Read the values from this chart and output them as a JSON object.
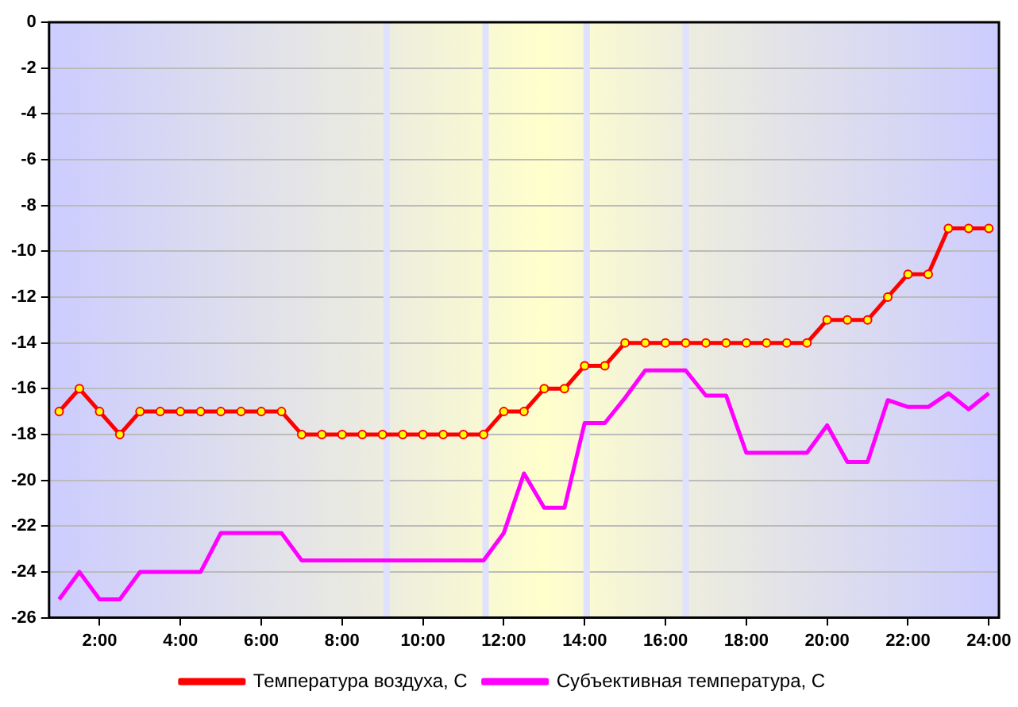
{
  "chart_data": {
    "type": "line",
    "x": [
      1,
      1.5,
      2,
      2.5,
      3,
      3.5,
      4,
      4.5,
      5,
      5.5,
      6,
      6.5,
      7,
      7.5,
      8,
      8.5,
      9,
      9.5,
      10,
      10.5,
      11,
      11.5,
      12,
      12.5,
      13,
      13.5,
      14,
      14.5,
      15,
      15.5,
      16,
      16.5,
      17,
      17.5,
      18,
      18.5,
      19,
      19.5,
      20,
      20.5,
      21,
      21.5,
      22,
      22.5,
      23,
      23.5,
      24
    ],
    "series": [
      {
        "name": "Температура воздуха, С",
        "color": "#ff0000",
        "marker": "circle",
        "values": [
          -17,
          -16,
          -17,
          -18,
          -17,
          -17,
          -17,
          -17,
          -17,
          -17,
          -17,
          -17,
          -18,
          -18,
          -18,
          -18,
          -18,
          -18,
          -18,
          -18,
          -18,
          -18,
          -17,
          -17,
          -16,
          -16,
          -15,
          -15,
          -14,
          -14,
          -14,
          -14,
          -14,
          -14,
          -14,
          -14,
          -14,
          -14,
          -13,
          -13,
          -13,
          -12,
          -11,
          -11,
          -9,
          -9,
          -9
        ]
      },
      {
        "name": "Субъективная температура, С",
        "color": "#ff00ff",
        "marker": "none",
        "values": [
          -25.2,
          -24,
          -25.2,
          -25.2,
          -24,
          -24,
          -24,
          -24,
          -22.3,
          -22.3,
          -22.3,
          -22.3,
          -23.5,
          -23.5,
          -23.5,
          -23.5,
          -23.5,
          -23.5,
          -23.5,
          -23.5,
          -23.5,
          -23.5,
          -22.3,
          -19.7,
          -21.2,
          -21.2,
          -17.5,
          -17.5,
          -16.4,
          -15.2,
          -15.2,
          -15.2,
          -16.3,
          -16.3,
          -18.8,
          -18.8,
          -18.8,
          -18.8,
          -17.6,
          -19.2,
          -19.2,
          -16.5,
          -16.8,
          -16.8,
          -16.2,
          -16.9,
          -16.2
        ]
      }
    ],
    "xlim": [
      0.75,
      24.25
    ],
    "xticks": [
      {
        "value": 2,
        "label": "2:00"
      },
      {
        "value": 4,
        "label": "4:00"
      },
      {
        "value": 6,
        "label": "6:00"
      },
      {
        "value": 8,
        "label": "8:00"
      },
      {
        "value": 10,
        "label": "10:00"
      },
      {
        "value": 12,
        "label": "12:00"
      },
      {
        "value": 14,
        "label": "14:00"
      },
      {
        "value": 16,
        "label": "16:00"
      },
      {
        "value": 18,
        "label": "18:00"
      },
      {
        "value": 20,
        "label": "20:00"
      },
      {
        "value": 22,
        "label": "22:00"
      },
      {
        "value": 24,
        "label": "24:00"
      }
    ],
    "ylim": [
      -26,
      0
    ],
    "yticks": [
      -26,
      -24,
      -22,
      -20,
      -18,
      -16,
      -14,
      -12,
      -10,
      -8,
      -6,
      -4,
      -2,
      0
    ],
    "grid": "y",
    "legend": "bottom",
    "ref_lines": [
      {
        "axis": "x",
        "value": 9.1,
        "color": "#e0e0ff"
      },
      {
        "axis": "x",
        "value": 11.55,
        "color": "#e0e0ff"
      },
      {
        "axis": "x",
        "value": 14.05,
        "color": "#e0e0ff"
      },
      {
        "axis": "x",
        "value": 16.5,
        "color": "#e0e0ff"
      }
    ]
  }
}
